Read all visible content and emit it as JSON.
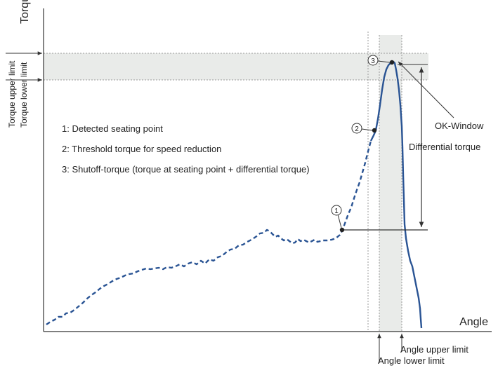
{
  "axes": {
    "y_label": "Torque",
    "x_label": "Angle"
  },
  "limits": {
    "torque_upper": "Torque upper limit",
    "torque_lower": "Torque lower limit",
    "angle_upper": "Angle upper limit",
    "angle_lower": "Angle lower limit"
  },
  "legend": [
    "1: Detected seating point",
    "2: Threshold torque for speed reduction",
    "3: Shutoff-torque (torque at seating point + differential torque)"
  ],
  "markers": [
    "1",
    "2",
    "3"
  ],
  "annotations": {
    "ok_window": "OK-Window",
    "differential_torque": "Differential torque"
  },
  "colors": {
    "curve": "#2a5494",
    "window_fill": "#e9ebe9",
    "axis": "#333333",
    "guide": "#999999"
  }
}
